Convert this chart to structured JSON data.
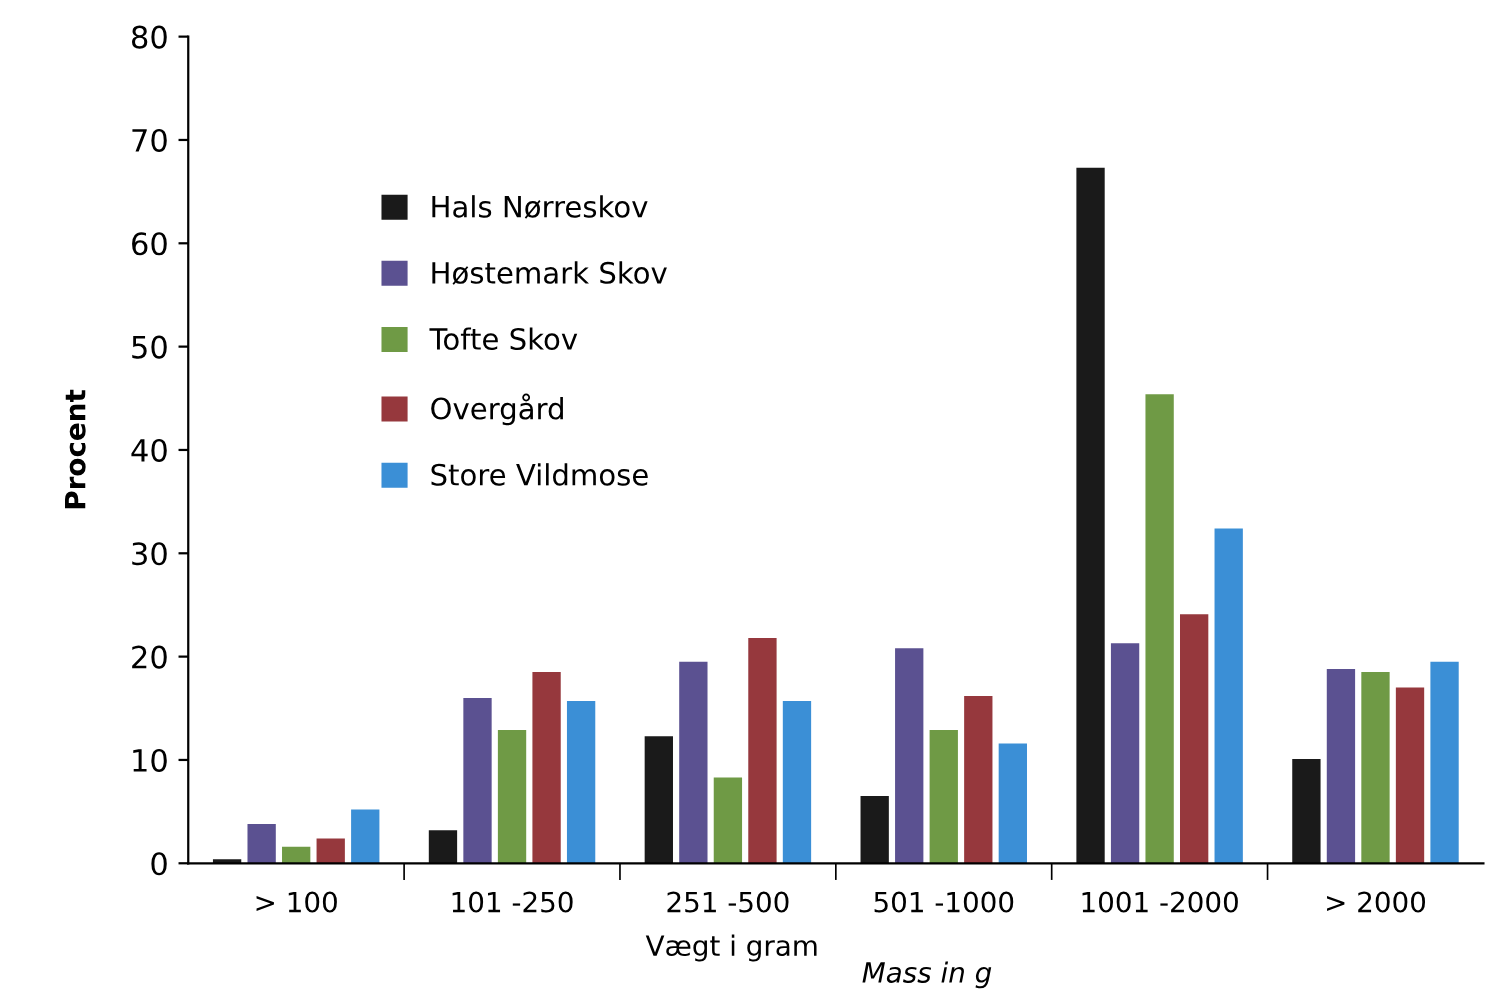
{
  "chart_data": {
    "type": "bar",
    "ylabel": "Procent",
    "xlabel": "Vægt i gram",
    "annotations": [
      "Mass in g"
    ],
    "categories": [
      "> 100",
      "101 -250",
      "251 -500",
      "501 -1000",
      "1001 -2000",
      "> 2000"
    ],
    "series": [
      {
        "name": "Hals Nørreskov",
        "color": "#1a1a1a",
        "values": [
          0.4,
          3.2,
          12.3,
          6.5,
          67.3,
          10.1
        ]
      },
      {
        "name": "Høstemark Skov",
        "color": "#5b5191",
        "values": [
          3.8,
          16,
          19.5,
          20.8,
          21.3,
          18.8
        ]
      },
      {
        "name": "Tofte Skov",
        "color": "#6f9a45",
        "values": [
          1.6,
          12.9,
          8.3,
          12.9,
          45.4,
          18.5
        ]
      },
      {
        "name": "Overgård",
        "color": "#96383d",
        "values": [
          2.4,
          18.5,
          21.8,
          16.2,
          24.1,
          17
        ]
      },
      {
        "name": "Store Vildmose",
        "color": "#3b8fd6",
        "values": [
          5.2,
          15.7,
          15.7,
          11.6,
          32.4,
          19.5
        ]
      }
    ],
    "ylim": [
      0,
      80
    ],
    "yticks": [
      0,
      10,
      20,
      30,
      40,
      50,
      60,
      70,
      80
    ],
    "grid": false,
    "legend": "top left"
  }
}
